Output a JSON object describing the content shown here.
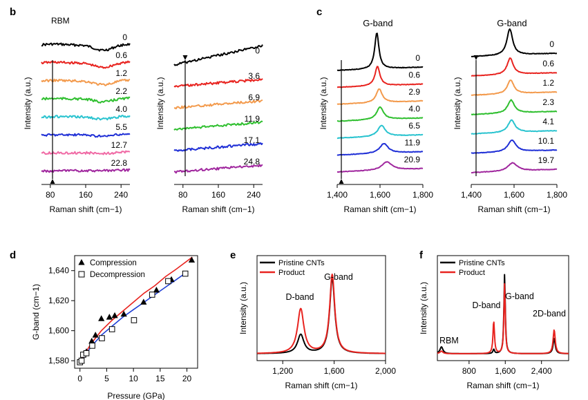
{
  "colors": {
    "black": "#000000",
    "red": "#e8231f",
    "orange": "#f39a4c",
    "green": "#2fbf2f",
    "cyan": "#29c3cf",
    "blue": "#1f2fd6",
    "pink": "#f06aa5",
    "purple": "#a0279e",
    "fit_red": "#e8231f",
    "fit_blue": "#1f3fd6"
  },
  "panel_letters": [
    "b",
    "c",
    "d",
    "e",
    "f"
  ],
  "chart_data": [
    {
      "id": "b1",
      "type": "line",
      "panel": "b",
      "title": "",
      "annotation": "RBM",
      "xlabel": "Raman shift (cm−1)",
      "ylabel": "Intensity (a.u.)",
      "xlim": [
        60,
        260
      ],
      "xticks": [
        80,
        160,
        240
      ],
      "arrow": "down",
      "series": [
        {
          "name": "0",
          "color": "black"
        },
        {
          "name": "0.6",
          "color": "red"
        },
        {
          "name": "1.2",
          "color": "orange"
        },
        {
          "name": "2.2",
          "color": "green"
        },
        {
          "name": "4.0",
          "color": "cyan"
        },
        {
          "name": "5.5",
          "color": "blue"
        },
        {
          "name": "12.7",
          "color": "pink"
        },
        {
          "name": "22.8",
          "color": "purple"
        }
      ]
    },
    {
      "id": "b2",
      "type": "line",
      "panel": "b",
      "title": "",
      "xlabel": "Raman shift (cm−1)",
      "ylabel": "Intensity (a.u.)",
      "xlim": [
        60,
        260
      ],
      "xticks": [
        80,
        160,
        240
      ],
      "arrow": "up",
      "series": [
        {
          "name": "0",
          "color": "black"
        },
        {
          "name": "3.6",
          "color": "red"
        },
        {
          "name": "6.9",
          "color": "orange"
        },
        {
          "name": "11.9",
          "color": "green"
        },
        {
          "name": "17.1",
          "color": "blue"
        },
        {
          "name": "24.8",
          "color": "purple"
        }
      ]
    },
    {
      "id": "c1",
      "type": "line",
      "panel": "c",
      "title": "",
      "annotation": "G-band",
      "xlabel": "Raman shift (cm−1)",
      "ylabel": "Intensity (a.u.)",
      "xlim": [
        1400,
        1800
      ],
      "xticks": [
        1400,
        1600,
        1800
      ],
      "xtick_labels": [
        "1,400",
        "1,600",
        "1,800"
      ],
      "arrow": "down",
      "series": [
        {
          "name": "0",
          "color": "black",
          "center": 1585
        },
        {
          "name": "0.6",
          "color": "red",
          "center": 1588
        },
        {
          "name": "2.9",
          "color": "orange",
          "center": 1596
        },
        {
          "name": "4.0",
          "color": "green",
          "center": 1600
        },
        {
          "name": "6.5",
          "color": "cyan",
          "center": 1607
        },
        {
          "name": "11.9",
          "color": "blue",
          "center": 1618
        },
        {
          "name": "20.9",
          "color": "purple",
          "center": 1632
        }
      ]
    },
    {
      "id": "c2",
      "type": "line",
      "panel": "c",
      "title": "",
      "annotation": "G-band",
      "xlabel": "Raman shift (cm−1)",
      "ylabel": "Intensity (a.u.)",
      "xlim": [
        1400,
        1800
      ],
      "xticks": [
        1400,
        1600,
        1800
      ],
      "xtick_labels": [
        "1,400",
        "1,600",
        "1,800"
      ],
      "arrow": "up",
      "series": [
        {
          "name": "0",
          "color": "black",
          "center": 1580
        },
        {
          "name": "0.6",
          "color": "red",
          "center": 1582
        },
        {
          "name": "1.2",
          "color": "orange",
          "center": 1584
        },
        {
          "name": "2.3",
          "color": "green",
          "center": 1586
        },
        {
          "name": "4.1",
          "color": "cyan",
          "center": 1588
        },
        {
          "name": "10.1",
          "color": "blue",
          "center": 1590
        },
        {
          "name": "19.7",
          "color": "purple",
          "center": 1593
        }
      ]
    },
    {
      "id": "d",
      "type": "scatter",
      "panel": "d",
      "title": "",
      "xlabel": "Pressure (GPa)",
      "ylabel": "G-band (cm−1)",
      "xlim": [
        -1,
        22
      ],
      "ylim": [
        1575,
        1650
      ],
      "xticks": [
        0,
        5,
        10,
        15,
        20
      ],
      "yticks": [
        1580,
        1600,
        1620,
        1640
      ],
      "ytick_labels": [
        "1,580",
        "1,600",
        "1,620",
        "1,640"
      ],
      "legend": [
        "Compression",
        "Decompression"
      ],
      "series": [
        {
          "name": "Compression",
          "marker": "triangle",
          "x": [
            0.3,
            0.6,
            1.2,
            2.2,
            2.9,
            4.0,
            5.5,
            6.5,
            8.2,
            11.9,
            14.3,
            17.1,
            20.9
          ],
          "y": [
            1580,
            1584,
            1586,
            1593,
            1597,
            1608,
            1609,
            1610,
            1611,
            1619,
            1627,
            1634,
            1647
          ]
        },
        {
          "name": "Decompression",
          "marker": "square",
          "x": [
            0.0,
            0.3,
            0.6,
            1.2,
            2.3,
            4.1,
            6.0,
            10.1,
            13.5,
            16.5,
            19.7
          ],
          "y": [
            1579,
            1580,
            1584,
            1585,
            1590,
            1595,
            1601,
            1607,
            1624,
            1633,
            1638
          ]
        }
      ],
      "fits": [
        {
          "color": "fit_red",
          "x": [
            0,
            2,
            4,
            6,
            8,
            10,
            12,
            14,
            16,
            18,
            21
          ],
          "y": [
            1579,
            1591,
            1600,
            1607,
            1613,
            1619,
            1625,
            1630,
            1636,
            1641,
            1649
          ]
        },
        {
          "color": "fit_blue",
          "x": [
            0,
            2,
            4,
            6,
            8,
            10,
            12,
            14,
            16,
            18,
            20
          ],
          "y": [
            1578,
            1589,
            1597,
            1603,
            1609,
            1614,
            1619,
            1624,
            1629,
            1634,
            1639
          ]
        }
      ]
    },
    {
      "id": "e",
      "type": "line",
      "panel": "e",
      "title": "",
      "xlabel": "Raman shift (cm−1)",
      "ylabel": "Intensity (a.u.)",
      "xlim": [
        1000,
        2000
      ],
      "xticks": [
        1200,
        1600,
        2000
      ],
      "xtick_labels": [
        "1,200",
        "1,600",
        "2,000"
      ],
      "legend": [
        "Pristine CNTs",
        "Product"
      ],
      "annotations": [
        "D-band",
        "G-band"
      ],
      "series": [
        {
          "name": "Pristine CNTs",
          "color": "black",
          "peaks": [
            {
              "center": 1340,
              "height": 0.22,
              "width": 30
            },
            {
              "center": 1585,
              "height": 0.88,
              "width": 24
            }
          ]
        },
        {
          "name": "Product",
          "color": "red",
          "peaks": [
            {
              "center": 1340,
              "height": 0.52,
              "width": 30
            },
            {
              "center": 1585,
              "height": 0.92,
              "width": 24
            }
          ]
        }
      ]
    },
    {
      "id": "f",
      "type": "line",
      "panel": "f",
      "title": "",
      "xlabel": "Raman shift (cm−1)",
      "ylabel": "Intensity (a.u.)",
      "xlim": [
        100,
        3000
      ],
      "xticks": [
        800,
        1600,
        2400
      ],
      "xtick_labels": [
        "800",
        "1,600",
        "2,400"
      ],
      "legend": [
        "Pristine CNTs",
        "Product"
      ],
      "annotations": [
        "RBM",
        "D-band",
        "G-band",
        "2D-band"
      ],
      "series": [
        {
          "name": "Pristine CNTs",
          "color": "black",
          "peaks": [
            {
              "center": 190,
              "height": 0.08,
              "width": 40
            },
            {
              "center": 1345,
              "height": 0.05,
              "width": 20
            },
            {
              "center": 1585,
              "height": 0.93,
              "width": 18
            },
            {
              "center": 2680,
              "height": 0.18,
              "width": 28
            }
          ]
        },
        {
          "name": "Product",
          "color": "red",
          "peaks": [
            {
              "center": 190,
              "height": 0.03,
              "width": 40
            },
            {
              "center": 1345,
              "height": 0.38,
              "width": 20
            },
            {
              "center": 1585,
              "height": 0.82,
              "width": 18
            },
            {
              "center": 2680,
              "height": 0.28,
              "width": 28
            }
          ]
        }
      ]
    }
  ]
}
